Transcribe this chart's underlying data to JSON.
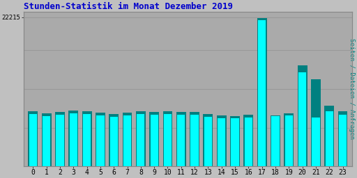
{
  "title": "Stunden-Statistik im Monat Dezember 2019",
  "title_color": "#0000cc",
  "ylabel": "Seiten / Dateien / Anfragen",
  "ylabel_color": "#008080",
  "ytick_label": "22215",
  "background_color": "#c0c0c0",
  "plot_bg_color": "#aaaaaa",
  "bar_color_cyan": "#00ffff",
  "bar_color_teal": "#008080",
  "bar_outline": "#006060",
  "hours": [
    0,
    1,
    2,
    3,
    4,
    5,
    6,
    7,
    8,
    9,
    10,
    11,
    12,
    13,
    14,
    15,
    16,
    17,
    18,
    19,
    20,
    21,
    22,
    23
  ],
  "cyan_values": [
    7800,
    7500,
    7700,
    7900,
    7800,
    7600,
    7400,
    7600,
    7800,
    7700,
    7750,
    7700,
    7650,
    7400,
    7200,
    7100,
    7300,
    21800,
    7500,
    7600,
    14000,
    7300,
    8200,
    7700
  ],
  "teal_values": [
    8200,
    7900,
    8100,
    8300,
    8200,
    8000,
    7800,
    8000,
    8200,
    8100,
    8150,
    8100,
    8050,
    7800,
    7600,
    7500,
    7700,
    22100,
    7600,
    7900,
    15000,
    13000,
    9000,
    8200
  ],
  "ylim": [
    0,
    23000
  ],
  "ytick_val": 22215,
  "grid_vals": [
    5750,
    11500,
    17250,
    22215
  ],
  "grid_color": "#999999"
}
